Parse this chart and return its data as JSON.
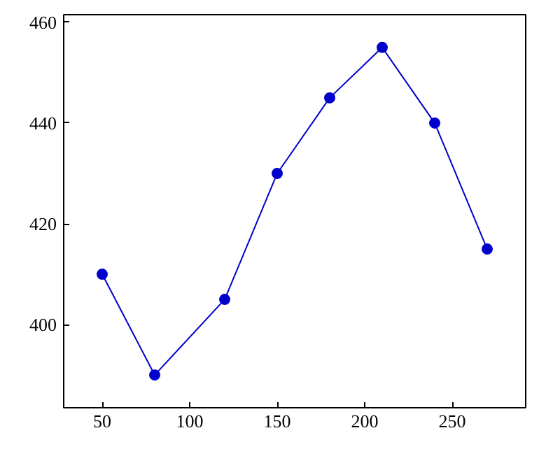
{
  "chart_data": {
    "type": "line",
    "x": [
      50,
      80,
      120,
      150,
      180,
      210,
      240,
      270
    ],
    "series": [
      {
        "color": "#0000cc",
        "values": [
          410,
          390,
          405,
          430,
          445,
          455,
          440,
          415
        ]
      }
    ],
    "xlim": [
      28,
      292
    ],
    "ylim": [
      383.5,
      461.5
    ],
    "xticks": [
      50,
      100,
      150,
      200,
      250
    ],
    "yticks": [
      400,
      420,
      440,
      460
    ],
    "marker": "circle",
    "grid": false
  }
}
